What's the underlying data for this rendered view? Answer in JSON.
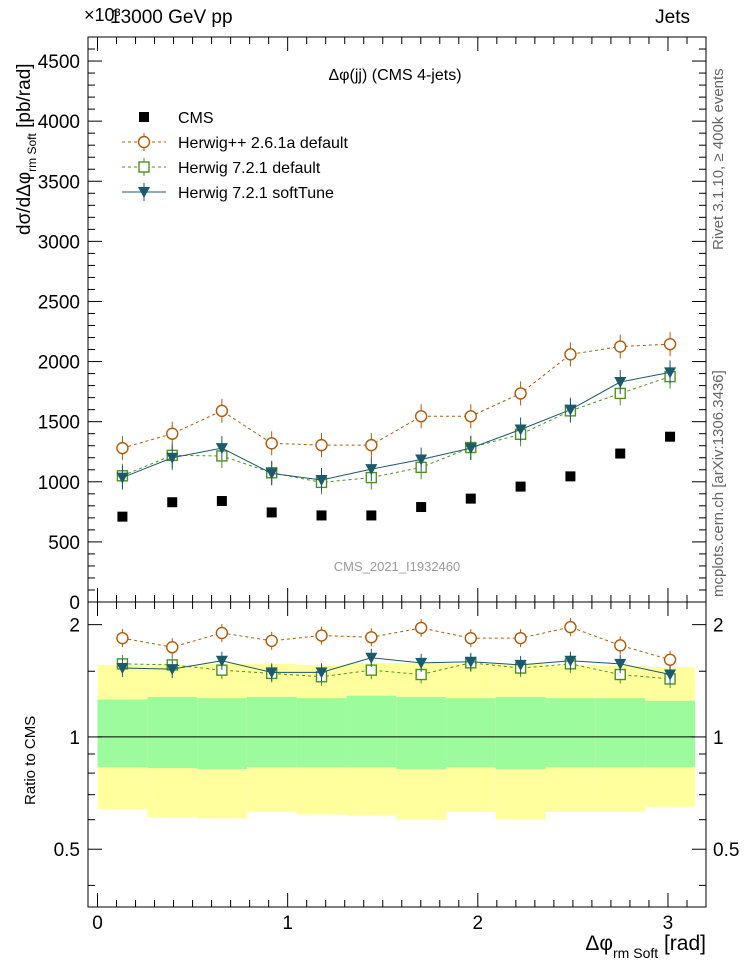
{
  "header": {
    "left": "13000 GeV pp",
    "right": "Jets",
    "exponent": "×10³"
  },
  "side_text": {
    "top": "Rivet 3.1.10, ≥ 400k events",
    "bottom": "mcplots.cern.ch [arXiv:1306.3436]"
  },
  "watermark": "CMS_2021_I1932460",
  "chart_data": [
    {
      "type": "scatter",
      "title": "Δφ(jj) (CMS 4-jets)",
      "ylabel": "dσ/dΔφ_rm Soft [pb/rad]",
      "xlabel": "Δφ_rm Soft [rad]",
      "xlim": [
        -0.05,
        3.2
      ],
      "ylim": [
        0,
        4700
      ],
      "y_exponent": 3,
      "yticks": [
        0,
        500,
        1000,
        1500,
        2000,
        2500,
        3000,
        3500,
        4000,
        4500
      ],
      "xticks": [
        0,
        1,
        2,
        3
      ],
      "legend_position": "top-left",
      "x": [
        0.131,
        0.393,
        0.654,
        0.916,
        1.178,
        1.44,
        1.702,
        1.963,
        2.225,
        2.487,
        2.749,
        3.011
      ],
      "series": [
        {
          "name": "CMS",
          "marker": "square-filled",
          "color": "#000000",
          "values": [
            710,
            830,
            840,
            745,
            720,
            720,
            790,
            860,
            960,
            1045,
            1235,
            1375
          ]
        },
        {
          "name": "Herwig++ 2.6.1a default",
          "marker": "circle-open",
          "color": "#b35806",
          "line": "dashed",
          "values": [
            1280,
            1400,
            1590,
            1320,
            1305,
            1305,
            1545,
            1545,
            1735,
            2060,
            2125,
            2145
          ]
        },
        {
          "name": "Herwig 7.2.1 default",
          "marker": "square-open",
          "color": "#4d9221",
          "line": "dashed",
          "values": [
            1050,
            1220,
            1215,
            1075,
            995,
            1035,
            1120,
            1285,
            1395,
            1590,
            1735,
            1875
          ]
        },
        {
          "name": "Herwig 7.2.1 softTune",
          "marker": "triangle-down-filled",
          "color": "#1a5a6b",
          "line": "solid",
          "values": [
            1035,
            1200,
            1280,
            1070,
            1015,
            1105,
            1185,
            1280,
            1435,
            1600,
            1830,
            1910
          ]
        }
      ]
    },
    {
      "type": "scatter",
      "ylabel": "Ratio to CMS",
      "xlabel": "Δφ_rm Soft [rad]",
      "xlim": [
        -0.05,
        3.2
      ],
      "ylim": [
        0.35,
        2.3
      ],
      "yticks": [
        0.5,
        1,
        2
      ],
      "xticks": [
        0,
        1,
        2,
        3
      ],
      "x": [
        0.131,
        0.393,
        0.654,
        0.916,
        1.178,
        1.44,
        1.702,
        1.963,
        2.225,
        2.487,
        2.749,
        3.011
      ],
      "band_edges": [
        0.0,
        0.262,
        0.524,
        0.785,
        1.047,
        1.309,
        1.571,
        1.833,
        2.094,
        2.356,
        2.618,
        2.88,
        3.142
      ],
      "stat_band": [
        [
          0.83,
          1.26
        ],
        [
          0.825,
          1.28
        ],
        [
          0.82,
          1.27
        ],
        [
          0.83,
          1.28
        ],
        [
          0.83,
          1.27
        ],
        [
          0.83,
          1.29
        ],
        [
          0.82,
          1.28
        ],
        [
          0.83,
          1.27
        ],
        [
          0.82,
          1.28
        ],
        [
          0.83,
          1.27
        ],
        [
          0.83,
          1.27
        ],
        [
          0.83,
          1.25
        ]
      ],
      "total_band": [
        [
          0.64,
          1.56
        ],
        [
          0.61,
          1.56
        ],
        [
          0.605,
          1.57
        ],
        [
          0.63,
          1.57
        ],
        [
          0.62,
          1.56
        ],
        [
          0.615,
          1.58
        ],
        [
          0.6,
          1.58
        ],
        [
          0.63,
          1.57
        ],
        [
          0.6,
          1.57
        ],
        [
          0.63,
          1.56
        ],
        [
          0.63,
          1.55
        ],
        [
          0.65,
          1.54
        ]
      ],
      "series": [
        {
          "name": "Herwig++ 2.6.1a default",
          "values": [
            1.84,
            1.74,
            1.9,
            1.81,
            1.87,
            1.85,
            1.96,
            1.84,
            1.84,
            1.97,
            1.76,
            1.61
          ]
        },
        {
          "name": "Herwig 7.2.1 default",
          "values": [
            1.57,
            1.56,
            1.51,
            1.48,
            1.45,
            1.51,
            1.47,
            1.58,
            1.53,
            1.57,
            1.47,
            1.43
          ]
        },
        {
          "name": "Herwig 7.2.1 softTune",
          "values": [
            1.53,
            1.52,
            1.6,
            1.49,
            1.49,
            1.63,
            1.58,
            1.59,
            1.56,
            1.6,
            1.57,
            1.47
          ]
        }
      ]
    }
  ]
}
